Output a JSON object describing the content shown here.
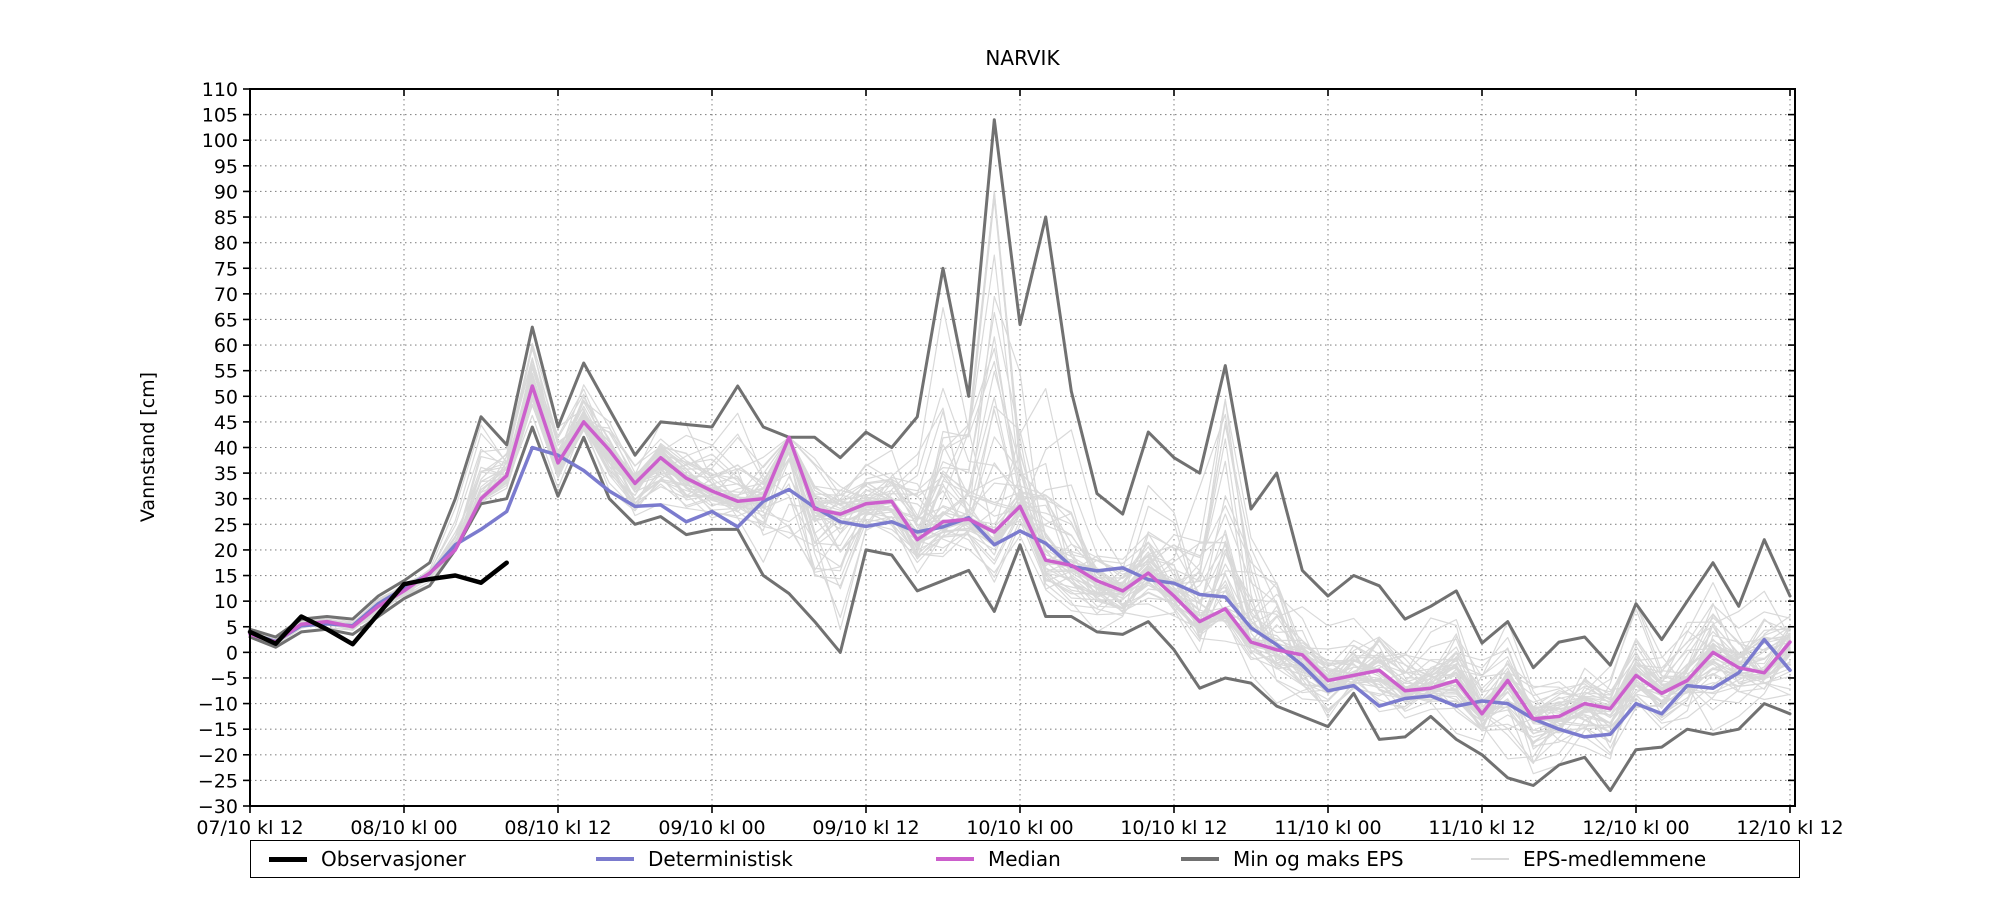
{
  "title": "NARVIK",
  "axes": {
    "ylabel": "Vannstand [cm]",
    "ylim": [
      -30,
      110
    ],
    "ytick_step": 5,
    "yticks": [
      110,
      105,
      100,
      95,
      90,
      85,
      80,
      75,
      70,
      65,
      60,
      55,
      50,
      45,
      40,
      35,
      30,
      25,
      20,
      15,
      10,
      5,
      0,
      -5,
      -10,
      -15,
      -20,
      -25,
      -30
    ],
    "xtick_labels": [
      "07/10 kl 12",
      "08/10 kl 00",
      "08/10 kl 12",
      "09/10 kl 00",
      "09/10 kl 12",
      "10/10 kl 00",
      "10/10 kl 12",
      "11/10 kl 00",
      "11/10 kl 12",
      "12/10 kl 00",
      "12/10 kl 12"
    ],
    "xlim_hours": [
      0,
      120
    ],
    "xtick_step_hours": 12,
    "grid": "dotted"
  },
  "legend": [
    {
      "label": "Observasjoner",
      "color": "#000000",
      "thickness": 5
    },
    {
      "label": "Deterministisk",
      "color": "#7b7bce",
      "thickness": 4
    },
    {
      "label": "Median",
      "color": "#cc5fcc",
      "thickness": 4
    },
    {
      "label": "Min og maks EPS",
      "color": "#717171",
      "thickness": 4
    },
    {
      "label": "EPS-medlemmene",
      "color": "#d9d9d9",
      "thickness": 2
    }
  ],
  "colors": {
    "background": "#ffffff",
    "axis": "#000000",
    "grid": "#8a8a8a",
    "observations": "#000000",
    "deterministic": "#7b7bce",
    "median": "#cc5fcc",
    "minmax": "#717171",
    "members": "#d9d9d9"
  },
  "chart_data": {
    "type": "line",
    "xlabel_unit": "date/time",
    "ylabel": "Vannstand [cm]",
    "ylim": [
      -30,
      110
    ],
    "hours": [
      0,
      2,
      4,
      6,
      8,
      10,
      12,
      14,
      16,
      18,
      20,
      22,
      24,
      26,
      28,
      30,
      32,
      34,
      36,
      38,
      40,
      42,
      44,
      46,
      48,
      50,
      52,
      54,
      56,
      58,
      60,
      62,
      64,
      66,
      68,
      70,
      72,
      74,
      76,
      78,
      80,
      82,
      84,
      86,
      88,
      90,
      92,
      94,
      96,
      98,
      100,
      102,
      104,
      106,
      108,
      110,
      112,
      114,
      116,
      118,
      120
    ],
    "series": [
      {
        "name": "Observasjoner",
        "color": "#000000",
        "width": 4.5,
        "values": [
          4,
          1.7,
          7,
          4.5,
          1.6,
          7.5,
          13.3,
          14.3,
          15,
          13.6,
          17.5
        ]
      },
      {
        "name": "Deterministisk",
        "color": "#7b7bce",
        "width": 3.5,
        "values": [
          3.7,
          2.1,
          5.2,
          5.6,
          5.2,
          9.5,
          12.5,
          15.4,
          21,
          24,
          27.5,
          40,
          38.5,
          35.5,
          31.5,
          28.5,
          28.8,
          25.5,
          27.5,
          24.5,
          29.5,
          31.8,
          28.3,
          25.5,
          24.6,
          25.5,
          23.5,
          24.5,
          26.3,
          21,
          23.7,
          21.3,
          16.8,
          15.9,
          16.5,
          14.2,
          13.5,
          11.3,
          10.8,
          4.8,
          1.5,
          -2.5,
          -7.5,
          -6.5,
          -10.5,
          -9,
          -8.5,
          -10.5,
          -9.5,
          -10,
          -13,
          -15,
          -16.5,
          -16,
          -10,
          -12,
          -6.5,
          -7,
          -4,
          2.5,
          -3.5
        ]
      },
      {
        "name": "Median",
        "color": "#cc5fcc",
        "width": 3.5,
        "values": [
          3.5,
          2,
          5.5,
          6,
          5,
          9,
          12,
          15.5,
          20,
          30,
          34.5,
          52,
          37,
          45,
          39.5,
          33,
          38,
          34,
          31.5,
          29.5,
          30,
          42,
          28,
          27,
          29,
          29.5,
          22,
          25.5,
          26,
          23.5,
          28.5,
          18,
          17,
          14,
          12,
          15.5,
          11,
          6,
          8.5,
          2,
          0.5,
          -0.5,
          -5.5,
          -4.5,
          -3.5,
          -7.5,
          -7,
          -5.5,
          -12,
          -5.5,
          -13,
          -12.5,
          -10,
          -11,
          -4.5,
          -8,
          -5.5,
          0,
          -3,
          -4,
          2
        ]
      },
      {
        "name": "Maks EPS",
        "color": "#717171",
        "width": 3,
        "values": [
          4.5,
          3,
          6.5,
          7,
          6.5,
          11,
          14,
          17.5,
          30,
          46,
          40.5,
          63.5,
          44,
          56.5,
          47.5,
          38.5,
          45,
          44.5,
          44,
          52,
          44,
          42,
          42,
          38,
          43,
          40,
          46,
          75,
          50,
          104,
          64,
          85,
          51,
          31,
          27,
          43,
          38,
          35,
          56,
          28,
          35,
          16,
          11,
          15,
          13,
          6.5,
          9,
          12,
          1.8,
          6,
          -3,
          2,
          3,
          -2.5,
          9.5,
          2.5,
          10,
          17.5,
          9,
          22,
          11
        ]
      },
      {
        "name": "Min EPS",
        "color": "#717171",
        "width": 3,
        "values": [
          3,
          1,
          4,
          4.5,
          3.5,
          7,
          10.5,
          13,
          20,
          29,
          30,
          44,
          30.5,
          42,
          30,
          25,
          26.5,
          23,
          24,
          24,
          15,
          11.5,
          6,
          0,
          20,
          19,
          12,
          14,
          16,
          8,
          21,
          7,
          7,
          4,
          3.5,
          6,
          0.5,
          -7,
          -5,
          -6,
          -10.5,
          -12.5,
          -14.5,
          -8,
          -17,
          -16.5,
          -12.5,
          -17,
          -20,
          -24.5,
          -26,
          -22,
          -20.5,
          -27,
          -19,
          -18.5,
          -15,
          -16,
          -15,
          -10,
          -12
        ]
      }
    ],
    "eps_members": {
      "name": "EPS-medlemmene",
      "count": 50,
      "seed": 7,
      "color": "#d9d9d9",
      "width": 1.2
    }
  }
}
